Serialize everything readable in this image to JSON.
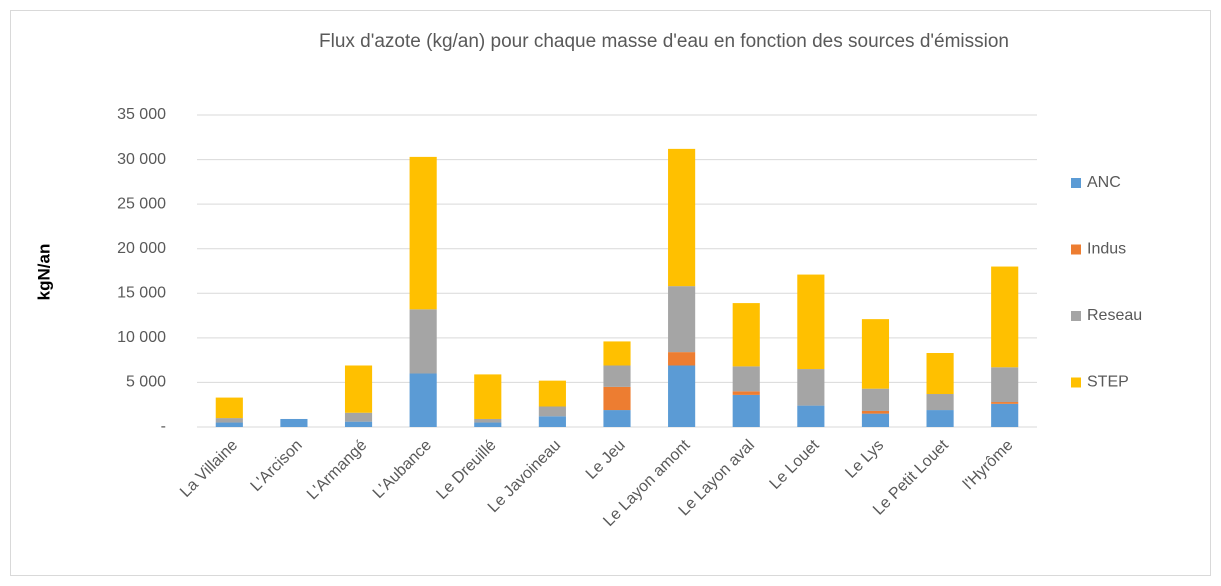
{
  "chart_data": {
    "type": "stacked_bar",
    "title": "Flux d'azote (kg/an) pour chaque masse d'eau en fonction des sources d'émission",
    "ylabel": "kgN/an",
    "categories": [
      "La Villaine",
      "L'Arcison",
      "L'Armangé",
      "L'Aubance",
      "Le Dreuillé",
      "Le Javoineau",
      "Le Jeu",
      "Le Layon amont",
      "Le Layon aval",
      "Le Louet",
      "Le Lys",
      "Le Petit Louet",
      "l'Hyrôme"
    ],
    "series": [
      {
        "name": "ANC",
        "color": "#5b9bd5",
        "values": [
          500,
          900,
          600,
          6000,
          500,
          1200,
          1900,
          6900,
          3600,
          2400,
          1500,
          1900,
          2600
        ]
      },
      {
        "name": "Indus",
        "color": "#ed7d31",
        "values": [
          0,
          0,
          0,
          0,
          0,
          0,
          2600,
          1500,
          400,
          0,
          300,
          0,
          200
        ]
      },
      {
        "name": "Reseau",
        "color": "#a5a5a5",
        "values": [
          500,
          0,
          1000,
          7200,
          400,
          1100,
          2400,
          7400,
          2800,
          4100,
          2500,
          1800,
          3900
        ]
      },
      {
        "name": "STEP",
        "color": "#ffc000",
        "values": [
          2300,
          0,
          5300,
          17100,
          5000,
          2900,
          2700,
          15400,
          7100,
          10600,
          7800,
          4600,
          11300
        ]
      }
    ],
    "ylim": [
      0,
      35000
    ],
    "yticks": [
      {
        "value": 0,
        "label": "-"
      },
      {
        "value": 5000,
        "label": "5 000"
      },
      {
        "value": 10000,
        "label": "10 000"
      },
      {
        "value": 15000,
        "label": "15 000"
      },
      {
        "value": 20000,
        "label": "20 000"
      },
      {
        "value": 25000,
        "label": "25 000"
      },
      {
        "value": 30000,
        "label": "30 000"
      },
      {
        "value": 35000,
        "label": "35 000"
      }
    ],
    "grid": true,
    "legend": "right"
  }
}
